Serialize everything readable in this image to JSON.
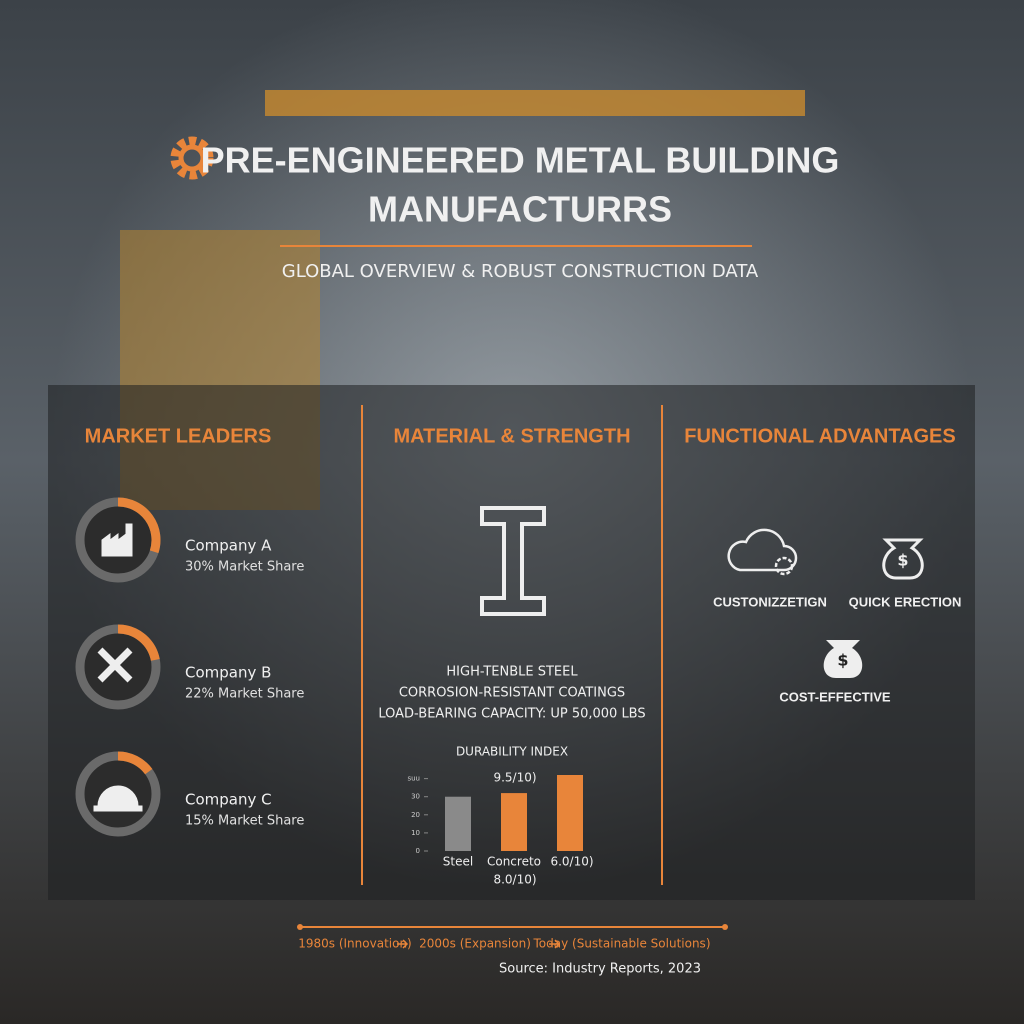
{
  "header": {
    "title_line1": "PRE-ENGINEERED METAL BUILDING",
    "title_line2": "MANUFACTURRS",
    "subtitle": "GLOBAL OVERVIEW & ROBUST CONSTRUCTION DATA"
  },
  "market_leaders": {
    "heading": "MARKET LEADERS",
    "companies": [
      {
        "name": "Company A",
        "share_label": "30% Market Share",
        "share": 30
      },
      {
        "name": "Company B",
        "share_label": "22% Market Share",
        "share": 22
      },
      {
        "name": "Company C",
        "share_label": "15% Market Share",
        "share": 15
      }
    ]
  },
  "material": {
    "heading": "MATERIAL & STRENGTH",
    "bullets": [
      "HIGH-TENBLE STEEL",
      "CORROSION-RESISTANT COATINGS",
      "LOAD-BEARING CAPACITY: UP 50,000 LBS"
    ],
    "chart_data": {
      "type": "bar",
      "title": "DURABILITY INDEX",
      "categories": [
        "Steel",
        "Concreto",
        null
      ],
      "values": [
        30,
        32,
        42
      ],
      "colors": [
        "#8a8a8a",
        "#e8853a",
        "#e8853a"
      ],
      "ylim": [
        0,
        42
      ],
      "yticks": [
        0,
        10,
        20,
        30,
        {
          "value": 40,
          "label": "suu"
        }
      ],
      "annotations": [
        "9.5/10)",
        "8.0/10)",
        "6.0/10)"
      ]
    }
  },
  "functional": {
    "heading": "FUNCTIONAL ADVANTAGES",
    "items": [
      "CUSTONIZZETIGN",
      "QUICK ERECTION",
      "COST-EFFECTIVE"
    ]
  },
  "timeline": [
    "1980s (Innovation)",
    "2000s (Expansion)",
    "Today (Sustainable Solutions)"
  ],
  "source": "Source: Industry Reports, 2023"
}
